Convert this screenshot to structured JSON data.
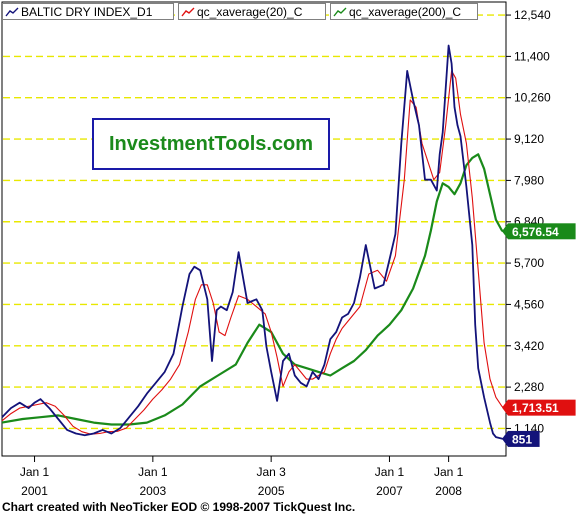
{
  "footer": "Chart created with NeoTicker EOD © 1998-2007 TickQuest Inc.",
  "logo_text": "InvestmentTools.com",
  "colors": {
    "index": "#13137a",
    "avg20": "#e01010",
    "avg200": "#1a8a1a",
    "grid": "#e8e800",
    "axis": "#000000",
    "badge_text": "#ffffff"
  },
  "legend": [
    {
      "label": "BALTIC DRY INDEX_D1",
      "color": "#13137a"
    },
    {
      "label": "qc_xaverage(20)_C",
      "color": "#e01010"
    },
    {
      "label": "qc_xaverage(200)_C",
      "color": "#1a8a1a"
    }
  ],
  "chart_data": {
    "type": "line",
    "y_ticks": [
      "12,540",
      "11,400",
      "10,260",
      "9,120",
      "7,980",
      "6,840",
      "5,700",
      "4,560",
      "3,420",
      "2,280",
      "1,140"
    ],
    "y_tick_values": [
      12540,
      11400,
      10260,
      9120,
      7980,
      6840,
      5700,
      4560,
      3420,
      2280,
      1140
    ],
    "ylim": [
      380,
      12900
    ],
    "xlim": [
      2000.45,
      2008.97
    ],
    "grid": true,
    "x_ticks": [
      {
        "top": "Jan 1",
        "bottom": "2001",
        "x": 2001.0
      },
      {
        "top": "Jan 1",
        "bottom": "2003",
        "x": 2003.0
      },
      {
        "top": "Jan 3",
        "bottom": "2005",
        "x": 2005.0
      },
      {
        "top": "Jan 1",
        "bottom": "2007",
        "x": 2007.0
      },
      {
        "top": "Jan 1",
        "bottom": "2008",
        "x": 2008.0
      }
    ],
    "badges": [
      {
        "text": "6,576.54",
        "value": 6576.54,
        "color": "#1a8a1a"
      },
      {
        "text": "1,713.51",
        "value": 1713.51,
        "color": "#e01010"
      },
      {
        "text": "851",
        "value": 851,
        "color": "#13137a"
      }
    ],
    "series": [
      {
        "name": "BALTIC DRY INDEX_D1",
        "color": "#13137a",
        "x": [
          2000.45,
          2000.6,
          2000.75,
          2000.9,
          2001.0,
          2001.1,
          2001.25,
          2001.4,
          2001.55,
          2001.7,
          2001.85,
          2002.0,
          2002.15,
          2002.3,
          2002.45,
          2002.6,
          2002.75,
          2002.9,
          2003.05,
          2003.2,
          2003.35,
          2003.5,
          2003.62,
          2003.7,
          2003.8,
          2003.92,
          2004.0,
          2004.08,
          2004.15,
          2004.25,
          2004.35,
          2004.45,
          2004.6,
          2004.75,
          2004.85,
          2004.92,
          2005.0,
          2005.1,
          2005.2,
          2005.3,
          2005.4,
          2005.5,
          2005.6,
          2005.7,
          2005.8,
          2005.9,
          2006.0,
          2006.1,
          2006.2,
          2006.3,
          2006.4,
          2006.5,
          2006.6,
          2006.75,
          2006.9,
          2007.0,
          2007.1,
          2007.2,
          2007.3,
          2007.4,
          2007.5,
          2007.6,
          2007.7,
          2007.8,
          2007.85,
          2007.9,
          2008.0,
          2008.05,
          2008.1,
          2008.15,
          2008.2,
          2008.3,
          2008.4,
          2008.45,
          2008.5,
          2008.6,
          2008.7,
          2008.75,
          2008.8,
          2008.85,
          2008.9,
          2008.93
        ],
        "y": [
          1450,
          1700,
          1850,
          1700,
          1850,
          1950,
          1700,
          1400,
          1100,
          1000,
          950,
          1000,
          1100,
          1000,
          1150,
          1450,
          1750,
          2100,
          2400,
          2700,
          3200,
          4500,
          5400,
          5600,
          5500,
          4700,
          3000,
          4400,
          4500,
          4400,
          4900,
          6000,
          4600,
          4700,
          4400,
          3400,
          2700,
          1900,
          3000,
          3200,
          2600,
          2400,
          2300,
          2700,
          2500,
          2900,
          3600,
          3800,
          4200,
          4300,
          4600,
          5300,
          6200,
          5000,
          5100,
          5800,
          6500,
          9000,
          11000,
          10200,
          9500,
          8000,
          8000,
          7700,
          8700,
          9300,
          11700,
          11200,
          10000,
          9500,
          9200,
          7800,
          6200,
          4000,
          2800,
          2000,
          1300,
          1000,
          900,
          880,
          860,
          851
        ]
      },
      {
        "name": "qc_xaverage(20)_C",
        "color": "#e01010",
        "x": [
          2000.45,
          2000.6,
          2000.75,
          2000.9,
          2001.05,
          2001.2,
          2001.35,
          2001.5,
          2001.65,
          2001.8,
          2001.95,
          2002.1,
          2002.25,
          2002.4,
          2002.55,
          2002.7,
          2002.85,
          2003.0,
          2003.15,
          2003.3,
          2003.45,
          2003.6,
          2003.72,
          2003.82,
          2003.92,
          2004.02,
          2004.12,
          2004.22,
          2004.32,
          2004.45,
          2004.6,
          2004.75,
          2004.9,
          2005.0,
          2005.1,
          2005.2,
          2005.3,
          2005.4,
          2005.5,
          2005.6,
          2005.7,
          2005.8,
          2005.9,
          2006.0,
          2006.1,
          2006.2,
          2006.35,
          2006.5,
          2006.65,
          2006.8,
          2006.95,
          2007.1,
          2007.25,
          2007.35,
          2007.45,
          2007.55,
          2007.65,
          2007.75,
          2007.85,
          2007.95,
          2008.05,
          2008.12,
          2008.2,
          2008.3,
          2008.4,
          2008.5,
          2008.6,
          2008.7,
          2008.8,
          2008.9,
          2008.93
        ],
        "y": [
          1350,
          1550,
          1700,
          1750,
          1800,
          1850,
          1750,
          1500,
          1200,
          1050,
          980,
          1000,
          1050,
          1060,
          1150,
          1400,
          1650,
          1950,
          2200,
          2500,
          2900,
          3800,
          4700,
          5100,
          5100,
          4600,
          3800,
          3700,
          4200,
          4800,
          4700,
          4500,
          4300,
          3800,
          3100,
          2300,
          2700,
          2900,
          2700,
          2500,
          2500,
          2600,
          2700,
          3200,
          3600,
          3900,
          4200,
          4500,
          5400,
          5500,
          5200,
          5900,
          8000,
          10200,
          10000,
          9000,
          8500,
          8000,
          8200,
          9500,
          11000,
          10800,
          9800,
          9000,
          7500,
          5500,
          3500,
          2500,
          2000,
          1750,
          1713
        ]
      },
      {
        "name": "qc_xaverage(200)_C",
        "color": "#1a8a1a",
        "x": [
          2000.45,
          2000.8,
          2001.1,
          2001.4,
          2001.7,
          2002.0,
          2002.3,
          2002.6,
          2002.9,
          2003.2,
          2003.5,
          2003.8,
          2004.1,
          2004.4,
          2004.6,
          2004.8,
          2005.0,
          2005.2,
          2005.4,
          2005.6,
          2005.8,
          2006.0,
          2006.2,
          2006.4,
          2006.6,
          2006.8,
          2007.0,
          2007.2,
          2007.4,
          2007.6,
          2007.7,
          2007.8,
          2007.9,
          2008.0,
          2008.1,
          2008.2,
          2008.3,
          2008.4,
          2008.5,
          2008.6,
          2008.7,
          2008.8,
          2008.9,
          2008.93
        ],
        "y": [
          1300,
          1400,
          1450,
          1500,
          1400,
          1300,
          1250,
          1250,
          1300,
          1500,
          1800,
          2300,
          2600,
          2900,
          3500,
          4000,
          3800,
          3200,
          2900,
          2800,
          2700,
          2600,
          2800,
          3000,
          3300,
          3700,
          4000,
          4400,
          5000,
          5900,
          6600,
          7400,
          7900,
          7800,
          7600,
          7900,
          8400,
          8600,
          8700,
          8300,
          7600,
          6900,
          6600,
          6576
        ]
      }
    ]
  }
}
